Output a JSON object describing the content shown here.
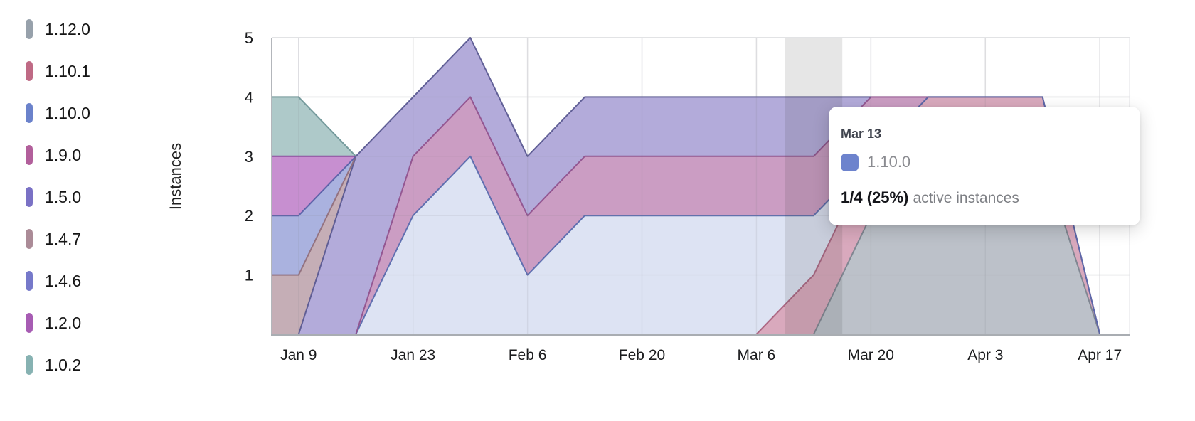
{
  "tooltip": {
    "date": "Mar 13",
    "series": "1.10.0",
    "swatch_color": "#6d83cd",
    "value": "1/4 (25%)",
    "suffix": "active instances"
  },
  "chart_data": {
    "type": "area",
    "stacked": true,
    "title": "",
    "xlabel": "",
    "ylabel": "Instances",
    "ylim": [
      0,
      5
    ],
    "y_ticks": [
      1,
      2,
      3,
      4,
      5
    ],
    "grid": true,
    "legend_position": "left",
    "x_point_dates": [
      "Jan 4",
      "Jan 9",
      "Jan 16",
      "Jan 23",
      "Jan 30",
      "Feb 6",
      "Feb 13",
      "Feb 20",
      "Feb 27",
      "Mar 6",
      "Mar 13",
      "Mar 20",
      "Mar 27",
      "Apr 3",
      "Apr 10",
      "Apr 17",
      ""
    ],
    "x_points_weeks": [
      -0.47,
      0,
      1,
      2,
      3,
      4,
      5,
      6,
      7,
      8,
      9,
      10,
      11,
      12,
      13,
      14,
      14.52
    ],
    "x_tick_weeks": [
      0,
      2,
      4,
      6,
      8,
      10,
      12,
      14
    ],
    "x_tick_labels": [
      "Jan 9",
      "Jan 23",
      "Feb 6",
      "Feb 20",
      "Mar 6",
      "Mar 20",
      "Apr 3",
      "Apr 17"
    ],
    "hover": {
      "x_label": "Mar 13",
      "week": 9,
      "highlight_color": "rgba(60,60,65,0.13)"
    },
    "series": [
      {
        "name": "1.12.0",
        "legend_color": "#97a1ab",
        "fill": "#bcc1c9",
        "stroke": "#79828d",
        "values": [
          0,
          0,
          0,
          0,
          0,
          0,
          0,
          0,
          0,
          0,
          0,
          2,
          3,
          3,
          3,
          0,
          0
        ]
      },
      {
        "name": "1.10.1",
        "legend_color": "#bf6a85",
        "fill": "#d9a9bd",
        "stroke": "#a85f7d",
        "values": [
          0,
          0,
          0,
          0,
          0,
          0,
          0,
          0,
          0,
          0,
          1,
          1,
          1,
          1,
          1,
          0,
          0
        ]
      },
      {
        "name": "1.10.0",
        "legend_color": "#6b82cb",
        "fill": "#dde3f3",
        "stroke": "#5568ac",
        "values": [
          0,
          0,
          0,
          2,
          3,
          1,
          2,
          2,
          2,
          2,
          1,
          0,
          0,
          0,
          0,
          0,
          0
        ]
      },
      {
        "name": "1.9.0",
        "legend_color": "#b25f9b",
        "fill": "#cb9dc3",
        "stroke": "#8f4f8c",
        "values": [
          0,
          0,
          0,
          1,
          1,
          1,
          1,
          1,
          1,
          1,
          1,
          1,
          0,
          0,
          0,
          0,
          0
        ]
      },
      {
        "name": "1.5.0",
        "legend_color": "#7a71c5",
        "fill": "#b3abda",
        "stroke": "#57568f",
        "values": [
          0,
          0,
          3,
          1,
          1,
          1,
          1,
          1,
          1,
          1,
          1,
          0,
          0,
          0,
          0,
          0,
          0
        ]
      },
      {
        "name": "1.4.7",
        "legend_color": "#ab8b97",
        "fill": "#c5aeb6",
        "stroke": "#8f6d7a",
        "values": [
          1,
          1,
          0,
          0,
          0,
          0,
          0,
          0,
          0,
          0,
          0,
          0,
          0,
          0,
          0,
          0,
          0
        ]
      },
      {
        "name": "1.4.6",
        "legend_color": "#7679ca",
        "fill": "#aab2df",
        "stroke": "#575da5",
        "values": [
          1,
          1,
          0,
          0,
          0,
          0,
          0,
          0,
          0,
          0,
          0,
          0,
          0,
          0,
          0,
          0,
          0
        ]
      },
      {
        "name": "1.2.0",
        "legend_color": "#a75cb3",
        "fill": "#c78fd0",
        "stroke": "#87459a",
        "values": [
          1,
          1,
          0,
          0,
          0,
          0,
          0,
          0,
          0,
          0,
          0,
          0,
          0,
          0,
          0,
          0,
          0
        ]
      },
      {
        "name": "1.0.2",
        "legend_color": "#87b2b2",
        "fill": "#aec9c9",
        "stroke": "#6c9496",
        "values": [
          1,
          1,
          0,
          0,
          0,
          0,
          0,
          0,
          0,
          0,
          0,
          0,
          0,
          0,
          0,
          0,
          0
        ]
      }
    ]
  }
}
